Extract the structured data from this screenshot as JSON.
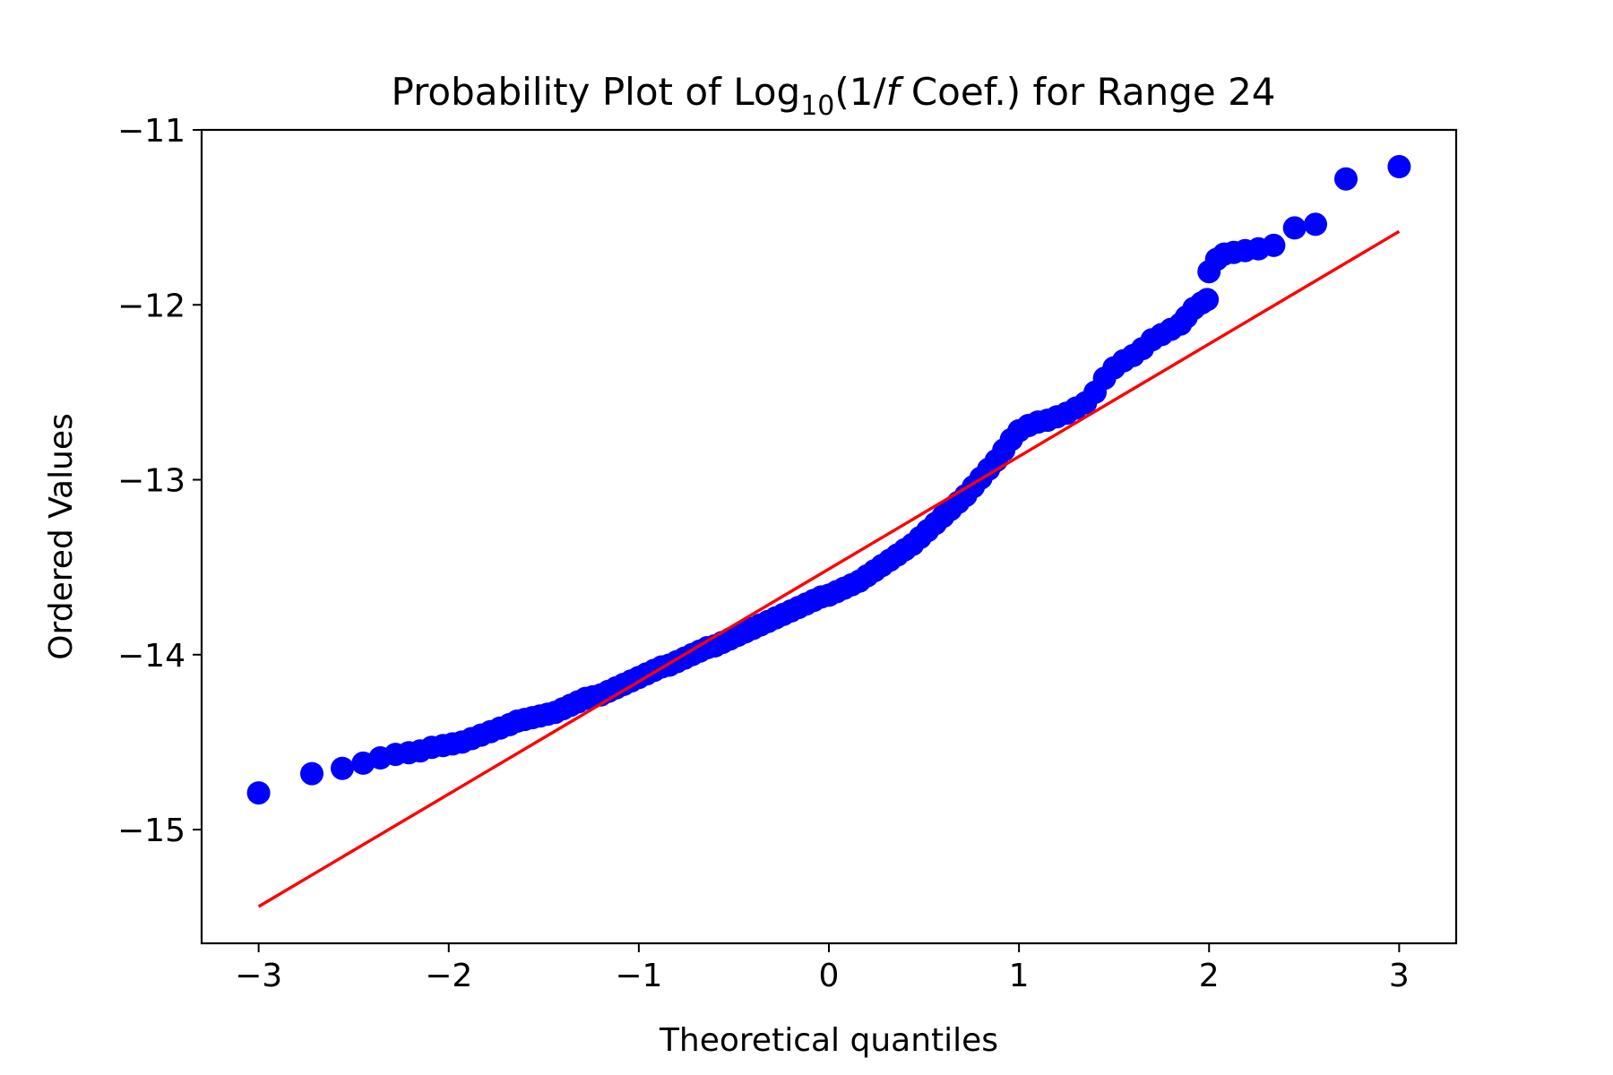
{
  "chart_data": {
    "type": "scatter",
    "title": {
      "prefix": "Probability Plot of Log",
      "subscript": "10",
      "open": "(1/",
      "italic": "f",
      "suffix": " Coef.) for Range 24"
    },
    "xlabel": "Theoretical quantiles",
    "ylabel": "Ordered Values",
    "xlim": [
      -3.3,
      3.3
    ],
    "ylim": [
      -15.65,
      -11.0
    ],
    "x_ticks": [
      -3,
      -2,
      -1,
      0,
      1,
      2,
      3
    ],
    "x_tick_labels": [
      "−3",
      "−2",
      "−1",
      "0",
      "1",
      "2",
      "3"
    ],
    "y_ticks": [
      -15,
      -14,
      -13,
      -12,
      -11
    ],
    "y_tick_labels": [
      "−15",
      "−14",
      "−13",
      "−12",
      "−11"
    ],
    "grid": false,
    "colors": {
      "points": "#0000ff",
      "fit_line": "#ff0000"
    },
    "fit_line": {
      "x": [
        -3.0,
        3.0
      ],
      "y": [
        -15.44,
        -11.58
      ]
    },
    "points": [
      [
        -3.0,
        -14.79
      ],
      [
        -2.72,
        -14.68
      ],
      [
        -2.56,
        -14.65
      ],
      [
        -2.45,
        -14.62
      ],
      [
        -2.36,
        -14.59
      ],
      [
        -2.28,
        -14.57
      ],
      [
        -2.21,
        -14.56
      ],
      [
        -2.15,
        -14.55
      ],
      [
        -2.09,
        -14.53
      ],
      [
        -2.03,
        -14.52
      ],
      [
        -1.98,
        -14.51
      ],
      [
        -1.93,
        -14.5
      ],
      [
        -1.88,
        -14.48
      ],
      [
        -1.83,
        -14.46
      ],
      [
        -1.78,
        -14.44
      ],
      [
        -1.73,
        -14.42
      ],
      [
        -1.68,
        -14.4
      ],
      [
        -1.64,
        -14.38
      ],
      [
        -1.6,
        -14.37
      ],
      [
        -1.56,
        -14.36
      ],
      [
        -1.52,
        -14.35
      ],
      [
        -1.48,
        -14.34
      ],
      [
        -1.44,
        -14.33
      ],
      [
        -1.4,
        -14.31
      ],
      [
        -1.36,
        -14.29
      ],
      [
        -1.32,
        -14.27
      ],
      [
        -1.28,
        -14.25
      ],
      [
        -1.24,
        -14.24
      ],
      [
        -1.2,
        -14.23
      ],
      [
        -1.16,
        -14.21
      ],
      [
        -1.12,
        -14.19
      ],
      [
        -1.08,
        -14.17
      ],
      [
        -1.04,
        -14.15
      ],
      [
        -1.0,
        -14.13
      ],
      [
        -0.96,
        -14.11
      ],
      [
        -0.92,
        -14.09
      ],
      [
        -0.88,
        -14.07
      ],
      [
        -0.84,
        -14.06
      ],
      [
        -0.8,
        -14.04
      ],
      [
        -0.76,
        -14.02
      ],
      [
        -0.72,
        -14.0
      ],
      [
        -0.68,
        -13.98
      ],
      [
        -0.64,
        -13.96
      ],
      [
        -0.6,
        -13.95
      ],
      [
        -0.56,
        -13.93
      ],
      [
        -0.52,
        -13.91
      ],
      [
        -0.48,
        -13.89
      ],
      [
        -0.44,
        -13.87
      ],
      [
        -0.4,
        -13.85
      ],
      [
        -0.36,
        -13.83
      ],
      [
        -0.32,
        -13.81
      ],
      [
        -0.28,
        -13.79
      ],
      [
        -0.24,
        -13.77
      ],
      [
        -0.2,
        -13.75
      ],
      [
        -0.16,
        -13.73
      ],
      [
        -0.12,
        -13.71
      ],
      [
        -0.08,
        -13.69
      ],
      [
        -0.04,
        -13.67
      ],
      [
        0.0,
        -13.66
      ],
      [
        0.04,
        -13.64
      ],
      [
        0.08,
        -13.62
      ],
      [
        0.12,
        -13.6
      ],
      [
        0.16,
        -13.58
      ],
      [
        0.2,
        -13.55
      ],
      [
        0.24,
        -13.52
      ],
      [
        0.28,
        -13.49
      ],
      [
        0.32,
        -13.46
      ],
      [
        0.36,
        -13.43
      ],
      [
        0.4,
        -13.4
      ],
      [
        0.44,
        -13.37
      ],
      [
        0.48,
        -13.33
      ],
      [
        0.52,
        -13.29
      ],
      [
        0.56,
        -13.25
      ],
      [
        0.6,
        -13.21
      ],
      [
        0.64,
        -13.17
      ],
      [
        0.68,
        -13.13
      ],
      [
        0.72,
        -13.09
      ],
      [
        0.76,
        -13.04
      ],
      [
        0.8,
        -12.99
      ],
      [
        0.84,
        -12.94
      ],
      [
        0.88,
        -12.89
      ],
      [
        0.92,
        -12.83
      ],
      [
        0.96,
        -12.77
      ],
      [
        1.0,
        -12.72
      ],
      [
        1.05,
        -12.69
      ],
      [
        1.1,
        -12.67
      ],
      [
        1.15,
        -12.66
      ],
      [
        1.2,
        -12.64
      ],
      [
        1.25,
        -12.62
      ],
      [
        1.3,
        -12.59
      ],
      [
        1.35,
        -12.56
      ],
      [
        1.4,
        -12.5
      ],
      [
        1.45,
        -12.42
      ],
      [
        1.5,
        -12.36
      ],
      [
        1.55,
        -12.32
      ],
      [
        1.6,
        -12.29
      ],
      [
        1.65,
        -12.25
      ],
      [
        1.7,
        -12.2
      ],
      [
        1.75,
        -12.17
      ],
      [
        1.8,
        -12.14
      ],
      [
        1.85,
        -12.11
      ],
      [
        1.88,
        -12.07
      ],
      [
        1.92,
        -12.02
      ],
      [
        1.96,
        -11.99
      ],
      [
        1.99,
        -11.97
      ],
      [
        2.0,
        -11.81
      ],
      [
        2.04,
        -11.74
      ],
      [
        2.08,
        -11.71
      ],
      [
        2.13,
        -11.7
      ],
      [
        2.19,
        -11.69
      ],
      [
        2.26,
        -11.68
      ],
      [
        2.34,
        -11.66
      ],
      [
        2.45,
        -11.56
      ],
      [
        2.56,
        -11.54
      ],
      [
        2.72,
        -11.28
      ],
      [
        3.0,
        -11.21
      ]
    ]
  }
}
